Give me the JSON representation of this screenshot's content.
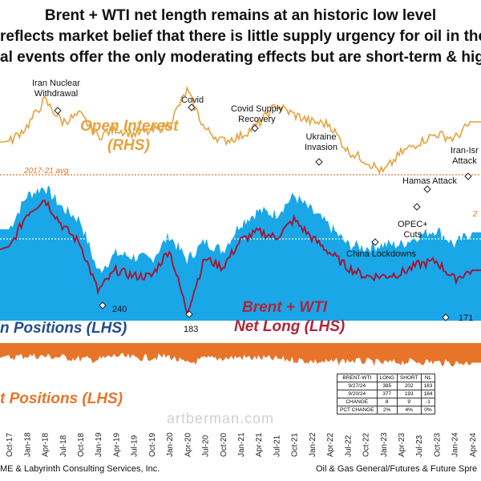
{
  "title_lines": [
    "Brent + WTI net length remains at an historic low level",
    "reflects market belief that there is little supply urgency for oil in the w",
    "al events offer the only moderating effects but are short-term & high"
  ],
  "footer": {
    "left": "ME & Labyrinth Consulting Services, Inc.",
    "right": "Oil & Gas General/Futures & Future Spre"
  },
  "watermark": "artberman.com",
  "series_labels": {
    "open_interest": [
      "Open Interest",
      "(RHS)"
    ],
    "net_long": [
      "Brent + WTI",
      "Net Long (LHS)"
    ],
    "long_positions": "n Positions (LHS)",
    "short_positions": "t Positions (LHS)"
  },
  "avg_labels": {
    "open_interest": "2017-21 avg",
    "long": "2017-21 avg",
    "open_interest_right": "2"
  },
  "annotations": {
    "iran_nuclear": [
      "Iran Nuclear",
      "Withdrawal"
    ],
    "covid": "Covid",
    "covid_supply": [
      "Covid Supply",
      "Recovery"
    ],
    "ukraine": [
      "Ukraine",
      "Invasion"
    ],
    "hamas": "Hamas Attack",
    "opec": [
      "OPEC+",
      "Cuts"
    ],
    "china": "China Lockdowns",
    "iran_israel": [
      "Iran-Isr",
      "Attack"
    ],
    "low_240": "240",
    "low_183": "183",
    "low_171": "171"
  },
  "table": {
    "headers": [
      "BRENT-WTI",
      "LONG",
      "SHORT",
      "NL"
    ],
    "rows": [
      [
        "9/27/24",
        "385",
        "202",
        "183"
      ],
      [
        "9/20/24",
        "377",
        "193",
        "184"
      ],
      [
        "CHANGE",
        "8",
        "9",
        "-1"
      ],
      [
        "PCT CHANGE",
        "2%",
        "4%",
        "0%"
      ]
    ]
  },
  "colors": {
    "open_interest": "#e6a23c",
    "long_area": "#1aa7e8",
    "net_long": "#9c1b3b",
    "short_area": "#e8742a",
    "avg_dotted": "#e8742a"
  },
  "chart_data": {
    "type": "area",
    "x": [
      "Oct-17",
      "Jan-18",
      "Apr-18",
      "Jul-18",
      "Oct-18",
      "Jan-19",
      "Apr-19",
      "Jul-19",
      "Oct-19",
      "Jan-20",
      "Apr-20",
      "Jul-20",
      "Oct-20",
      "Jan-21",
      "Apr-21",
      "Jul-21",
      "Oct-21",
      "Jan-22",
      "Apr-22",
      "Jul-22",
      "Oct-22",
      "Jan-23",
      "Apr-23",
      "Jul-23",
      "Oct-23",
      "Jan-24",
      "Apr-24"
    ],
    "series": [
      {
        "name": "Open Interest",
        "values": [
          0.55,
          0.68,
          0.9,
          0.72,
          0.78,
          0.6,
          0.66,
          0.62,
          0.64,
          0.7,
          0.98,
          0.66,
          0.56,
          0.6,
          0.7,
          0.86,
          0.78,
          0.72,
          0.7,
          0.48,
          0.4,
          0.3,
          0.46,
          0.55,
          0.62,
          0.58,
          0.72
        ]
      },
      {
        "name": "Long Positions",
        "values": [
          0.6,
          0.82,
          0.88,
          0.74,
          0.66,
          0.32,
          0.44,
          0.42,
          0.4,
          0.56,
          0.4,
          0.52,
          0.46,
          0.64,
          0.72,
          0.7,
          0.82,
          0.72,
          0.62,
          0.5,
          0.48,
          0.5,
          0.5,
          0.56,
          0.6,
          0.5,
          0.58
        ]
      },
      {
        "name": "Net Long",
        "values": [
          0.48,
          0.72,
          0.82,
          0.64,
          0.52,
          0.2,
          0.34,
          0.3,
          0.3,
          0.48,
          0.06,
          0.42,
          0.36,
          0.54,
          0.6,
          0.56,
          0.68,
          0.56,
          0.46,
          0.36,
          0.3,
          0.3,
          0.32,
          0.38,
          0.4,
          0.28,
          0.34
        ]
      },
      {
        "name": "Short Positions",
        "values": [
          0.35,
          0.3,
          0.32,
          0.34,
          0.38,
          0.4,
          0.3,
          0.36,
          0.34,
          0.32,
          0.5,
          0.38,
          0.36,
          0.34,
          0.36,
          0.38,
          0.4,
          0.44,
          0.46,
          0.42,
          0.44,
          0.48,
          0.45,
          0.44,
          0.46,
          0.48,
          0.47
        ]
      }
    ],
    "lows": [
      240,
      183,
      171
    ]
  }
}
